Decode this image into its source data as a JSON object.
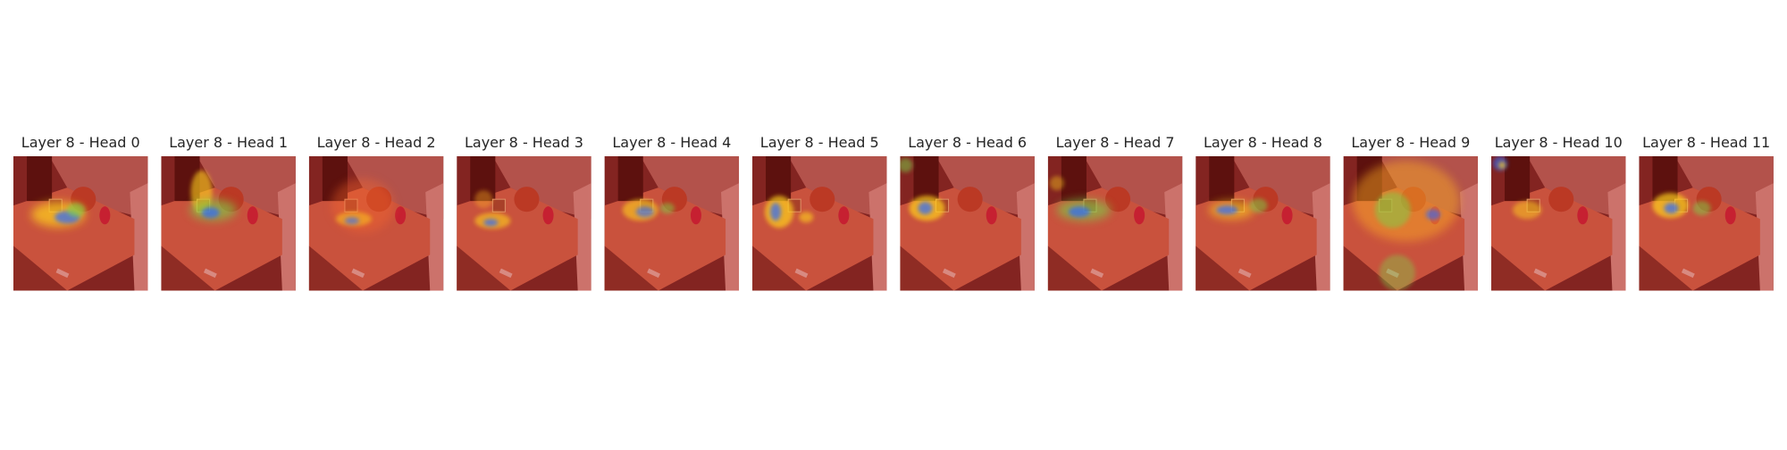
{
  "panels": [
    {
      "title": "Layer 8 - Head 0"
    },
    {
      "title": "Layer 8 - Head 1"
    },
    {
      "title": "Layer 8 - Head 2"
    },
    {
      "title": "Layer 8 - Head 3"
    },
    {
      "title": "Layer 8 - Head 4"
    },
    {
      "title": "Layer 8 - Head 5"
    },
    {
      "title": "Layer 8 - Head 6"
    },
    {
      "title": "Layer 8 - Head 7"
    },
    {
      "title": "Layer 8 - Head 8"
    },
    {
      "title": "Layer 8 - Head 9"
    },
    {
      "title": "Layer 8 - Head 10"
    },
    {
      "title": "Layer 8 - Head 11"
    }
  ]
}
